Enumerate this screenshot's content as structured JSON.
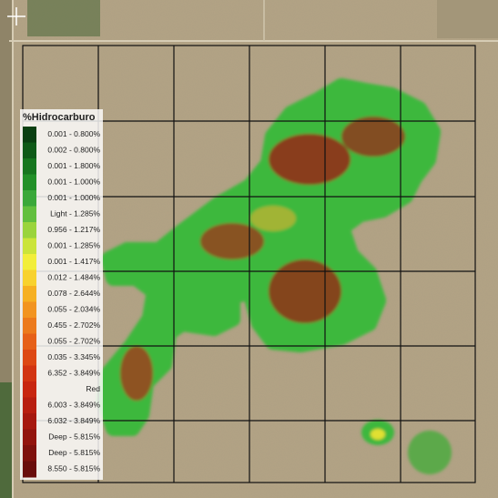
{
  "legend": {
    "title": "%Hidrocarburo",
    "items": [
      {
        "label": "0.001 - 0.800%",
        "color": "#0a3f12"
      },
      {
        "label": "0.002 - 0.800%",
        "color": "#0f5a18"
      },
      {
        "label": "0.001 - 1.800%",
        "color": "#17761f"
      },
      {
        "label": "0.001 - 1.000%",
        "color": "#229028"
      },
      {
        "label": "0.001 - 1.000%",
        "color": "#3aa83a"
      },
      {
        "label": "Light - 1.285%",
        "color": "#62bf3e"
      },
      {
        "label": "0.956 - 1.217%",
        "color": "#9ad43c"
      },
      {
        "label": "0.001 - 1.285%",
        "color": "#cbe43a"
      },
      {
        "label": "0.001 - 1.417%",
        "color": "#f2ee3a"
      },
      {
        "label": "0.012 - 1.484%",
        "color": "#f8d22e"
      },
      {
        "label": "0.078 - 2.644%",
        "color": "#f6b022"
      },
      {
        "label": "0.055 - 2.034%",
        "color": "#f29420"
      },
      {
        "label": "0.455 - 2.702%",
        "color": "#ec7a1c"
      },
      {
        "label": "0.055 - 2.702%",
        "color": "#e66018"
      },
      {
        "label": "0.035 - 3.345%",
        "color": "#dd4814"
      },
      {
        "label": "6.352 - 3.849%",
        "color": "#d23412"
      },
      {
        "label": "Red",
        "color": "#c82610"
      },
      {
        "label": "6.003 - 3.849%",
        "color": "#b81e10"
      },
      {
        "label": "6.032 - 3.849%",
        "color": "#a6180f"
      },
      {
        "label": "Deep - 5.815%",
        "color": "#92140e"
      },
      {
        "label": "Deep - 5.815%",
        "color": "#7e110d"
      },
      {
        "label": "8.550 - 5.815%",
        "color": "#6a0e0c"
      }
    ]
  }
}
